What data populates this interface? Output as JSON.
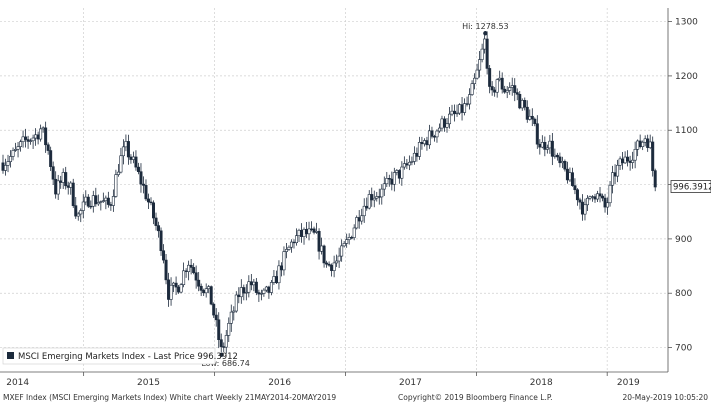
{
  "chart_data": {
    "type": "candlestick",
    "legend_text": "MSCI Emerging Markets Index - Last Price 996.3912",
    "legend_placement": "bottom-left",
    "last_price_label": "996.3912",
    "last_price": 996.3912,
    "high_annotation": {
      "text": "Hi: 1278.53",
      "value": 1278.53,
      "date": "2018-01-26"
    },
    "low_annotation": {
      "text": "Low: 686.74",
      "value": 686.74,
      "date": "2016-01-21"
    },
    "y_ticks": [
      700,
      800,
      900,
      1000,
      1100,
      1200,
      1300
    ],
    "y_tick_labels": [
      "700",
      "800",
      "900",
      "1000",
      "1100",
      "1200",
      "1300"
    ],
    "ylim": [
      655,
      1325
    ],
    "x_range": [
      "2014-05-21",
      "2019-05-20"
    ],
    "x_ticks": [
      {
        "label": "2014",
        "date": "2014-07-01"
      },
      {
        "label": "2015",
        "date": "2015-07-01"
      },
      {
        "label": "2016",
        "date": "2016-07-01"
      },
      {
        "label": "2017",
        "date": "2017-07-01"
      },
      {
        "label": "2018",
        "date": "2018-07-01"
      },
      {
        "label": "2019",
        "date": "2019-03-01"
      }
    ],
    "x_grid_dates": [
      "2014-01-01",
      "2015-01-01",
      "2016-01-01",
      "2017-01-01",
      "2018-01-01",
      "2019-01-01"
    ],
    "grid": true,
    "series": [
      {
        "values": [
          [
            "2014-05-21",
            1040
          ],
          [
            "2014-06-20",
            1055
          ],
          [
            "2014-07-21",
            1080
          ],
          [
            "2014-08-20",
            1090
          ],
          [
            "2014-09-05",
            1104
          ],
          [
            "2014-09-25",
            1060
          ],
          [
            "2014-10-15",
            990
          ],
          [
            "2014-11-05",
            1010
          ],
          [
            "2014-11-25",
            995
          ],
          [
            "2014-12-15",
            940
          ],
          [
            "2014-12-30",
            956
          ],
          [
            "2015-01-15",
            975
          ],
          [
            "2015-02-15",
            970
          ],
          [
            "2015-03-15",
            960
          ],
          [
            "2015-04-10",
            1040
          ],
          [
            "2015-04-28",
            1068
          ],
          [
            "2015-05-20",
            1040
          ],
          [
            "2015-06-20",
            990
          ],
          [
            "2015-07-15",
            940
          ],
          [
            "2015-08-10",
            880
          ],
          [
            "2015-08-25",
            800
          ],
          [
            "2015-09-20",
            810
          ],
          [
            "2015-10-20",
            860
          ],
          [
            "2015-11-20",
            820
          ],
          [
            "2015-12-20",
            795
          ],
          [
            "2016-01-21",
            690
          ],
          [
            "2016-02-10",
            740
          ],
          [
            "2016-03-10",
            800
          ],
          [
            "2016-04-10",
            820
          ],
          [
            "2016-05-10",
            790
          ],
          [
            "2016-06-10",
            810
          ],
          [
            "2016-07-10",
            860
          ],
          [
            "2016-08-10",
            900
          ],
          [
            "2016-09-10",
            910
          ],
          [
            "2016-10-10",
            905
          ],
          [
            "2016-11-10",
            850
          ],
          [
            "2016-12-10",
            860
          ],
          [
            "2017-01-10",
            900
          ],
          [
            "2017-02-10",
            950
          ],
          [
            "2017-03-10",
            980
          ],
          [
            "2017-04-10",
            985
          ],
          [
            "2017-05-10",
            1010
          ],
          [
            "2017-06-10",
            1025
          ],
          [
            "2017-07-10",
            1050
          ],
          [
            "2017-08-10",
            1080
          ],
          [
            "2017-09-10",
            1100
          ],
          [
            "2017-10-10",
            1120
          ],
          [
            "2017-11-10",
            1130
          ],
          [
            "2017-12-10",
            1150
          ],
          [
            "2018-01-05",
            1210
          ],
          [
            "2018-01-26",
            1270
          ],
          [
            "2018-02-09",
            1150
          ],
          [
            "2018-02-28",
            1195
          ],
          [
            "2018-03-20",
            1175
          ],
          [
            "2018-04-10",
            1180
          ],
          [
            "2018-05-05",
            1150
          ],
          [
            "2018-06-01",
            1120
          ],
          [
            "2018-06-30",
            1070
          ],
          [
            "2018-07-20",
            1080
          ],
          [
            "2018-08-15",
            1040
          ],
          [
            "2018-09-10",
            1020
          ],
          [
            "2018-10-10",
            980
          ],
          [
            "2018-10-30",
            950
          ],
          [
            "2018-11-20",
            990
          ],
          [
            "2018-12-10",
            975
          ],
          [
            "2018-12-28",
            955
          ],
          [
            "2019-01-20",
            1020
          ],
          [
            "2019-02-10",
            1040
          ],
          [
            "2019-03-01",
            1050
          ],
          [
            "2019-04-05",
            1075
          ],
          [
            "2019-04-19",
            1090
          ],
          [
            "2019-05-01",
            1070
          ],
          [
            "2019-05-10",
            1015
          ],
          [
            "2019-05-20",
            996.39
          ]
        ]
      }
    ]
  },
  "footer": {
    "left": "MXEF Index (MSCI Emerging Markets Index) White chart  Weekly 21MAY2014-20MAY2019",
    "center": "Copyright© 2019 Bloomberg Finance L.P.",
    "right": "20-May-2019 10:05:20"
  },
  "colors": {
    "candle": "#1c2a3c",
    "grid": "#cfcfcf",
    "axis": "#555555",
    "price_tag_bg": "#ffffff"
  }
}
